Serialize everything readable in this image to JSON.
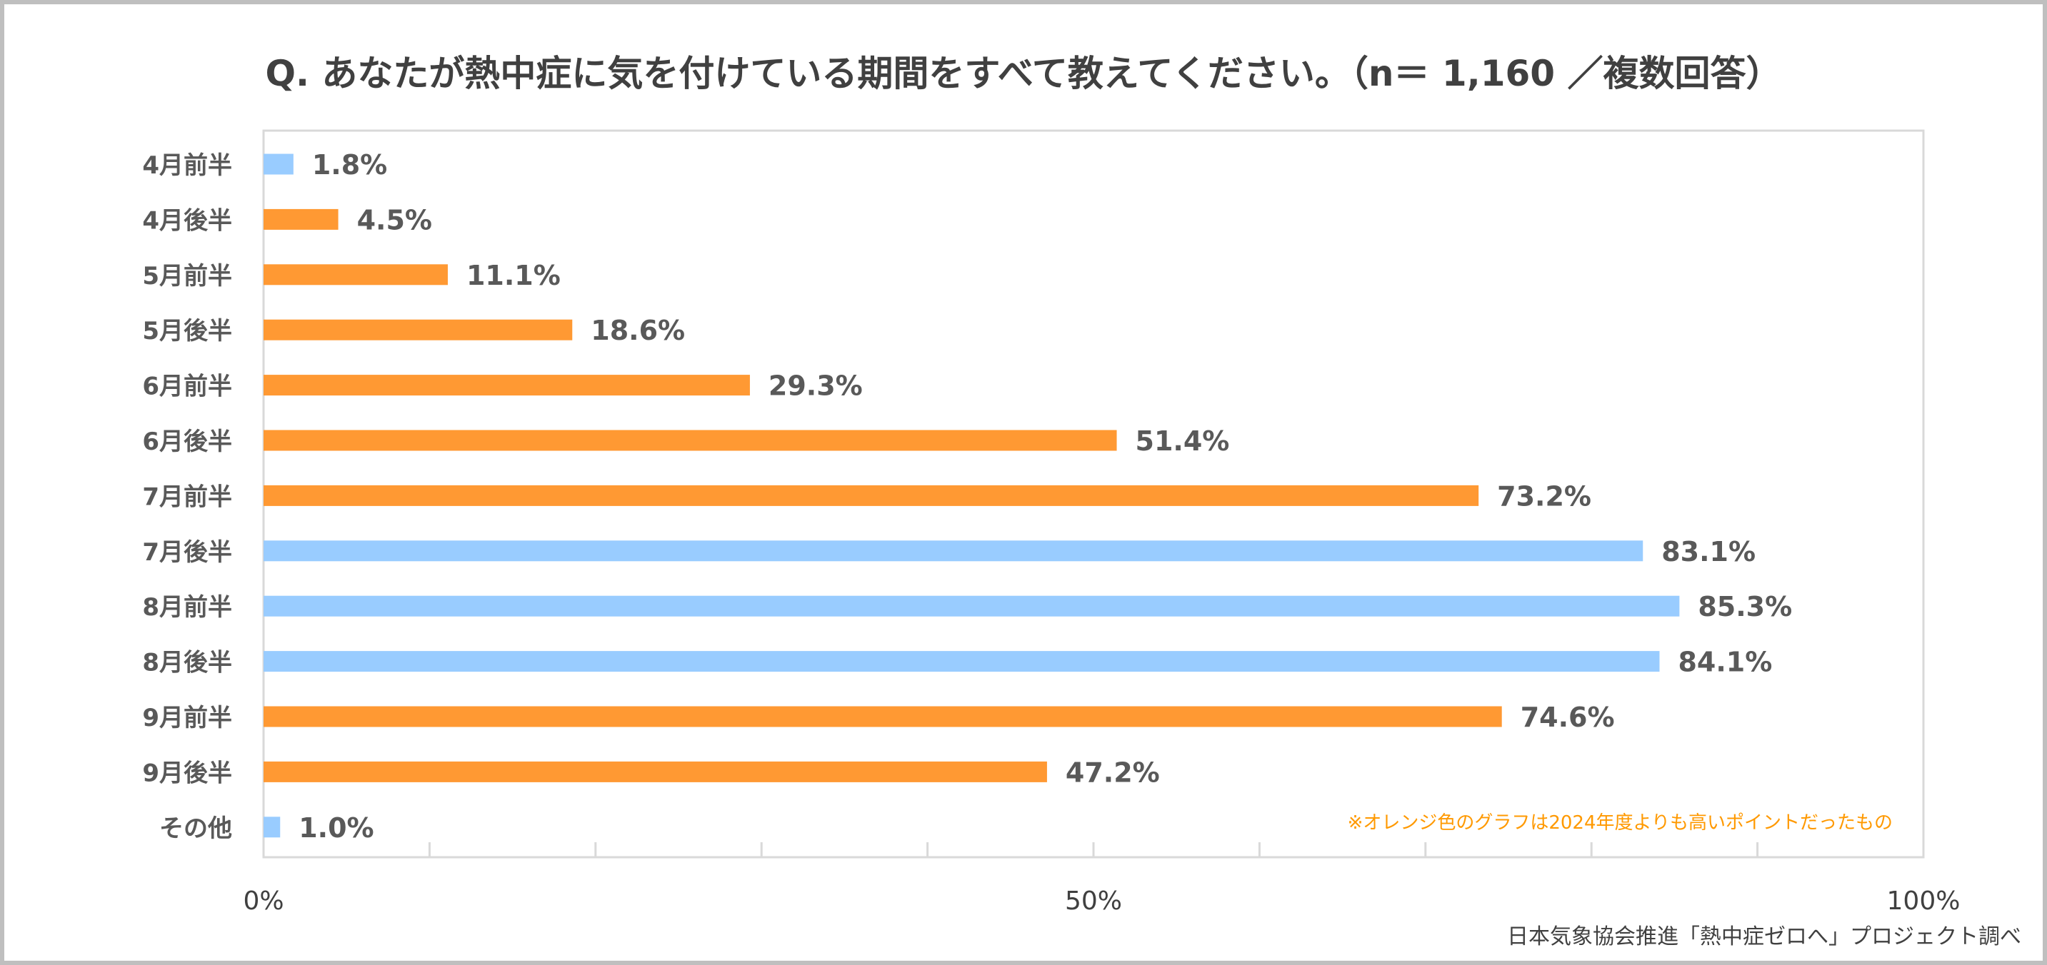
{
  "chart_data": {
    "type": "bar",
    "orientation": "horizontal",
    "title": "Q. あなたが熱中症に気を付けている期間をすべて教えてください。（n＝ 1,160 ／複数回答）",
    "categories": [
      "4月前半",
      "4月後半",
      "5月前半",
      "5月後半",
      "6月前半",
      "6月後半",
      "7月前半",
      "7月後半",
      "8月前半",
      "8月後半",
      "9月前半",
      "9月後半",
      "その他"
    ],
    "values": [
      1.8,
      4.5,
      11.1,
      18.6,
      29.3,
      51.4,
      73.2,
      83.1,
      85.3,
      84.1,
      74.6,
      47.2,
      1.0
    ],
    "data_labels": [
      "1.8%",
      "4.5%",
      "11.1%",
      "18.6%",
      "29.3%",
      "51.4%",
      "73.2%",
      "83.1%",
      "85.3%",
      "84.1%",
      "74.6%",
      "47.2%",
      "1.0%"
    ],
    "higher_than_2024": [
      false,
      true,
      true,
      true,
      true,
      true,
      true,
      false,
      false,
      false,
      true,
      true,
      false
    ],
    "xlim": [
      0,
      100
    ],
    "x_ticks": [
      "0%",
      "50%",
      "100%"
    ],
    "grid": false,
    "note": "※オレンジ色のグラフは2024年度よりも高いポイントだったもの",
    "source": "日本気象協会推進「熱中症ゼロへ」プロジェクト調べ",
    "colors": {
      "higher": "#FF9933",
      "other": "#99CCFF",
      "note": "#FF9900",
      "labels": "#595959",
      "border": "#BFBFBF"
    }
  }
}
